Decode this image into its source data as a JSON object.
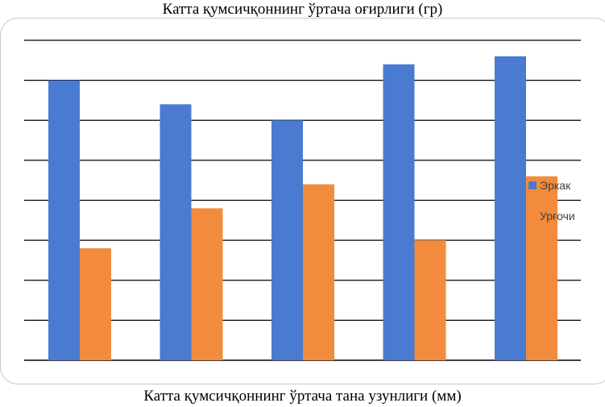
{
  "chart_data": {
    "type": "bar",
    "title": "Катта қумсичқоннинг ўртача оғирлиги (гр)",
    "xlabel": "Катта қумсичқоннинг ўртача тана узунлиги (мм)",
    "ylabel": "",
    "categories": [
      "",
      "",
      "",
      "",
      ""
    ],
    "ylim": [
      0,
      8
    ],
    "grid": true,
    "legend_position": "right",
    "series": [
      {
        "name": "Эркак",
        "color": "#4a7bd0",
        "values": [
          7.0,
          6.4,
          6.0,
          7.4,
          7.6
        ]
      },
      {
        "name": "Урғочи",
        "color": "#f28c3c",
        "values": [
          2.8,
          3.8,
          4.4,
          3.0,
          4.6
        ]
      }
    ],
    "gridline_color": "#000000"
  }
}
